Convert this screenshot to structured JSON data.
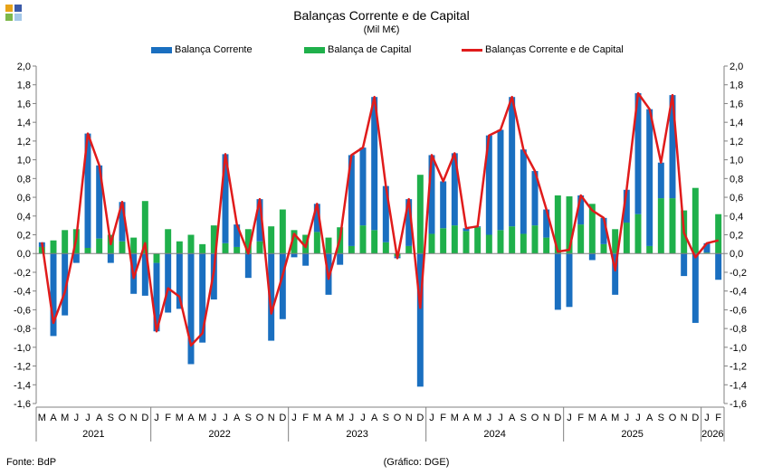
{
  "header": {
    "title": "Balanças Corrente e de Capital",
    "subtitle": "(Mil M€)"
  },
  "footer": {
    "source": "Fonte: BdP",
    "credit": "(Gráfico: DGE)"
  },
  "logo": {
    "icon": "dge-logo-icon",
    "colors": [
      "#e8a317",
      "#3b5aa8",
      "#7db84a",
      "#a4c8e8"
    ]
  },
  "colors": {
    "current": "#1a6fc0",
    "capital": "#1fb04b",
    "total": "#e01b1b",
    "grid": "#d9d9d9"
  },
  "chart_data": {
    "type": "bar",
    "title": "Balanças Corrente e de Capital",
    "subtitle": "(Mil M€)",
    "stacked": true,
    "ylim": [
      -1.6,
      2.0
    ],
    "ytick_step": 0.2,
    "yticks_both_sides": true,
    "grid": false,
    "legend_position": "top-center",
    "categories": [
      "M",
      "A",
      "M",
      "J",
      "J",
      "A",
      "S",
      "O",
      "N",
      "D",
      "J",
      "F",
      "M",
      "A",
      "M",
      "J",
      "J",
      "A",
      "S",
      "O",
      "N",
      "D",
      "J",
      "F",
      "M",
      "A",
      "M",
      "J",
      "J",
      "A",
      "S",
      "O",
      "N",
      "D",
      "J",
      "F",
      "M",
      "A",
      "M",
      "J",
      "J",
      "A",
      "S",
      "O",
      "N",
      "D",
      "J",
      "F",
      "M",
      "A",
      "M",
      "J",
      "J",
      "A",
      "S",
      "O",
      "N",
      "D",
      "J",
      "F"
    ],
    "year_groups": [
      {
        "label": "2021",
        "count": 10
      },
      {
        "label": "2022",
        "count": 12
      },
      {
        "label": "2023",
        "count": 12
      },
      {
        "label": "2024",
        "count": 12
      },
      {
        "label": "2025",
        "count": 12
      },
      {
        "label": "2026",
        "count": 2
      }
    ],
    "series": [
      {
        "name": "Balança Corrente",
        "kind": "bar",
        "values": [
          0.05,
          -0.88,
          -0.66,
          -0.1,
          1.22,
          0.78,
          -0.1,
          0.42,
          -0.43,
          -0.45,
          -0.73,
          -0.63,
          -0.59,
          -1.18,
          -0.95,
          -0.49,
          0.95,
          0.24,
          -0.26,
          0.45,
          -0.93,
          -0.7,
          -0.04,
          -0.13,
          0.3,
          -0.44,
          -0.12,
          0.97,
          0.83,
          1.42,
          0.6,
          -0.02,
          0.5,
          -1.42,
          0.84,
          0.5,
          0.77,
          0.03,
          0.01,
          1.06,
          1.07,
          1.38,
          0.9,
          0.58,
          0.3,
          -0.6,
          -0.57,
          0.31,
          -0.07,
          0.28,
          -0.44,
          0.35,
          1.29,
          1.46,
          0.38,
          1.1,
          -0.24,
          -0.74,
          0.1,
          -0.28
        ]
      },
      {
        "name": "Balança de Capital",
        "kind": "bar",
        "values": [
          0.07,
          0.14,
          0.25,
          0.26,
          0.06,
          0.16,
          0.2,
          0.13,
          0.17,
          0.56,
          -0.1,
          0.26,
          0.13,
          0.2,
          0.1,
          0.3,
          0.11,
          0.07,
          0.26,
          0.13,
          0.29,
          0.47,
          0.25,
          0.2,
          0.23,
          0.17,
          0.28,
          0.08,
          0.3,
          0.25,
          0.12,
          -0.03,
          0.08,
          0.84,
          0.21,
          0.27,
          0.3,
          0.24,
          0.28,
          0.2,
          0.25,
          0.29,
          0.21,
          0.3,
          0.17,
          0.62,
          0.61,
          0.31,
          0.53,
          0.1,
          0.26,
          0.33,
          0.42,
          0.08,
          0.59,
          0.59,
          0.46,
          0.7,
          0.01,
          0.42
        ]
      },
      {
        "name": "Balanças Corrente e de Capital",
        "kind": "line",
        "values": [
          0.12,
          -0.74,
          -0.41,
          0.16,
          1.28,
          0.94,
          0.1,
          0.55,
          -0.26,
          0.11,
          -0.83,
          -0.37,
          -0.46,
          -0.98,
          -0.85,
          -0.19,
          1.06,
          0.31,
          0.0,
          0.58,
          -0.64,
          -0.23,
          0.21,
          0.07,
          0.53,
          -0.27,
          0.16,
          1.05,
          1.13,
          1.67,
          0.72,
          -0.05,
          0.58,
          -0.58,
          1.05,
          0.77,
          1.07,
          0.27,
          0.29,
          1.26,
          1.32,
          1.67,
          1.11,
          0.88,
          0.47,
          0.02,
          0.04,
          0.62,
          0.46,
          0.38,
          -0.18,
          0.68,
          1.71,
          1.54,
          0.97,
          1.69,
          0.22,
          -0.04,
          0.11,
          0.14
        ]
      }
    ]
  }
}
